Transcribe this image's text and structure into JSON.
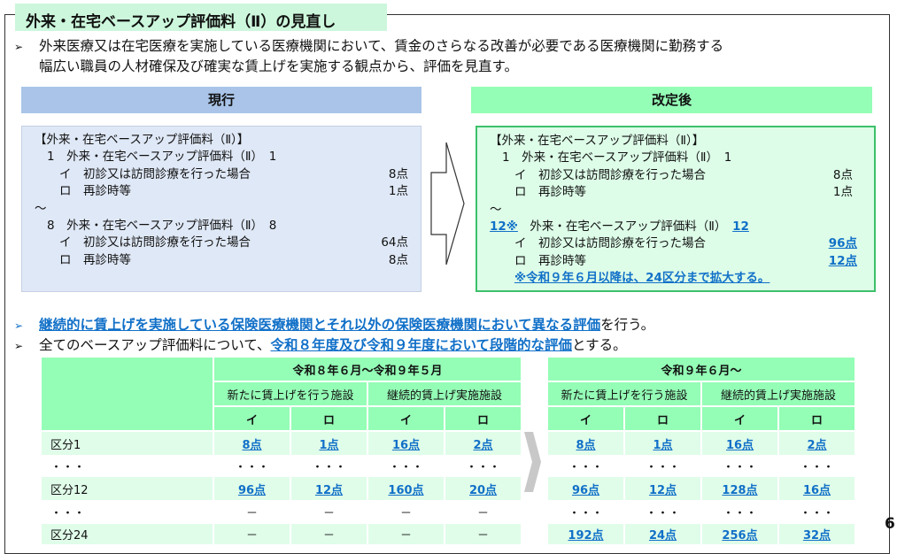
{
  "title": "外来・在宅ベースアップ評価料（Ⅱ）の見直し",
  "intro": [
    "外来医療又は在宅医療を実施している医療機関において、賃金のさらなる改善が必要である医療機関に勤務する",
    "幅広い職員の人材確保及び確実な賃上げを実施する観点から、評価を見直す。"
  ],
  "current": {
    "header": "現行",
    "heading": "【外来・在宅ベースアップ評価料（Ⅱ）】",
    "l1": "1　外来・在宅ベースアップ評価料（Ⅱ）　1",
    "i1": "イ　初診又は訪問診療を行った場合",
    "i1p": "8点",
    "r1": "ロ　再診時等",
    "r1p": "1点",
    "tilde": "～",
    "l8": "8　外来・在宅ベースアップ評価料（Ⅱ）　8",
    "i8": "イ　初診又は訪問診療を行った場合",
    "i8p": "64点",
    "r8": "ロ　再診時等",
    "r8p": "8点"
  },
  "revised": {
    "header": "改定後",
    "heading": "【外来・在宅ベースアップ評価料（Ⅱ）】",
    "l1": "1　外来・在宅ベースアップ評価料（Ⅱ）　1",
    "i1": "イ　初診又は訪問診療を行った場合",
    "i1p": "8点",
    "r1": "ロ　再診時等",
    "r1p": "1点",
    "tilde": "～",
    "l12num": "12※",
    "l12text": "外来・在宅ベースアップ評価料（Ⅱ）",
    "l12end": "12",
    "i12": "イ　初診又は訪問診療を行った場合",
    "i12p": "96点",
    "r12": "ロ　再診時等",
    "r12p": "12点",
    "note": "※令和９年６月以降は、24区分まで拡大する。"
  },
  "bullets": [
    {
      "pre": "",
      "em": "継続的に賃上げを実施している保険医療機関とそれ以外の保険医療機関において異なる評価",
      "post": "を行う。"
    },
    {
      "pre": "全てのベースアップ評価料について、",
      "em": "令和８年度及び令和９年度において段階的な評価",
      "post": "とする。"
    }
  ],
  "tables": [
    {
      "period": "令和８年６月～令和９年５月",
      "groups": [
        "新たに賃上げを行う施設",
        "継続的賃上げ実施施設"
      ],
      "cols": [
        "イ",
        "ロ",
        "イ",
        "ロ"
      ],
      "rows": [
        {
          "label": "区分1",
          "v": [
            "8点",
            "1点",
            "16点",
            "2点"
          ]
        },
        {
          "label": "・・・",
          "v": [
            "・・・",
            "・・・",
            "・・・",
            "・・・"
          ]
        },
        {
          "label": "区分12",
          "v": [
            "96点",
            "12点",
            "160点",
            "20点"
          ]
        },
        {
          "label": "・・・",
          "v": [
            "－",
            "－",
            "－",
            "－"
          ]
        },
        {
          "label": "区分24",
          "v": [
            "－",
            "－",
            "－",
            "－"
          ]
        }
      ]
    },
    {
      "period": "令和９年６月～",
      "groups": [
        "新たに賃上げを行う施設",
        "継続的賃上げ実施施設"
      ],
      "cols": [
        "イ",
        "ロ",
        "イ",
        "ロ"
      ],
      "rows": [
        {
          "v": [
            "8点",
            "1点",
            "16点",
            "2点"
          ]
        },
        {
          "v": [
            "・・・",
            "・・・",
            "・・・",
            "・・・"
          ]
        },
        {
          "v": [
            "96点",
            "12点",
            "128点",
            "16点"
          ]
        },
        {
          "v": [
            "・・・",
            "・・・",
            "・・・",
            "・・・"
          ]
        },
        {
          "v": [
            "192点",
            "24点",
            "256点",
            "32点"
          ]
        }
      ]
    }
  ],
  "page_number": "6",
  "colors": {
    "blue": "#1170c8",
    "green_header": "#94fdb6",
    "blue_header": "#a9c4e8"
  }
}
